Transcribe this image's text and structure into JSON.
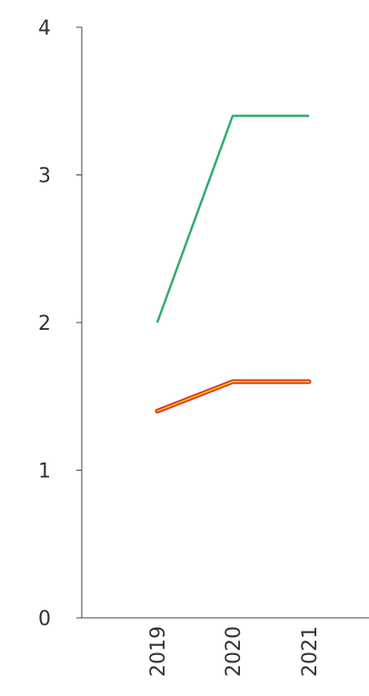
{
  "chart_data": {
    "type": "line",
    "x": [
      "2019",
      "2020",
      "2021"
    ],
    "ylim": [
      0,
      4
    ],
    "yticks": [
      "0",
      "1",
      "2",
      "3",
      "4"
    ],
    "grid": false,
    "legend": "none",
    "series": [
      {
        "color": "#2eaa6e",
        "values": [
          2.0,
          3.4,
          3.4
        ],
        "style": "plain"
      },
      {
        "color": "#f5b800",
        "outline": "#d62828",
        "values": [
          1.4,
          1.6,
          1.6
        ],
        "style": "outlined"
      }
    ]
  }
}
